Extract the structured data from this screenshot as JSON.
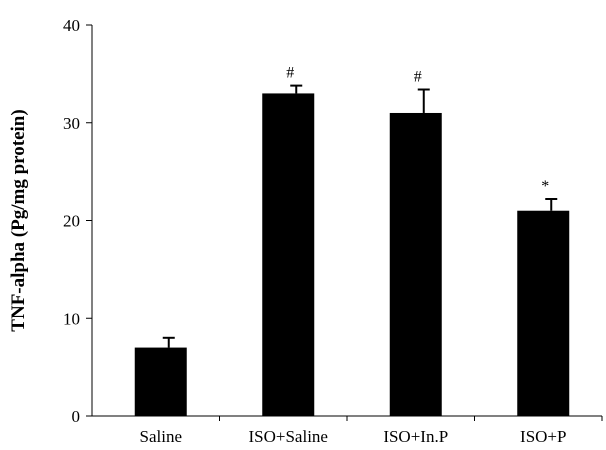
{
  "chart_data": {
    "type": "bar",
    "title": "",
    "xlabel": "",
    "ylabel": "TNF-alpha (Pg/mg protein)",
    "ylim": [
      0,
      40
    ],
    "yticks": [
      0,
      10,
      20,
      30,
      40
    ],
    "grid": false,
    "categories": [
      "Saline",
      "ISO+Saline",
      "ISO+In.P",
      "ISO+P"
    ],
    "values": [
      7,
      33,
      31,
      21
    ],
    "error": [
      1,
      0.8,
      2.4,
      1.2
    ],
    "annotations": [
      "",
      "#",
      "#",
      "*"
    ],
    "bar_color": "#000000"
  }
}
